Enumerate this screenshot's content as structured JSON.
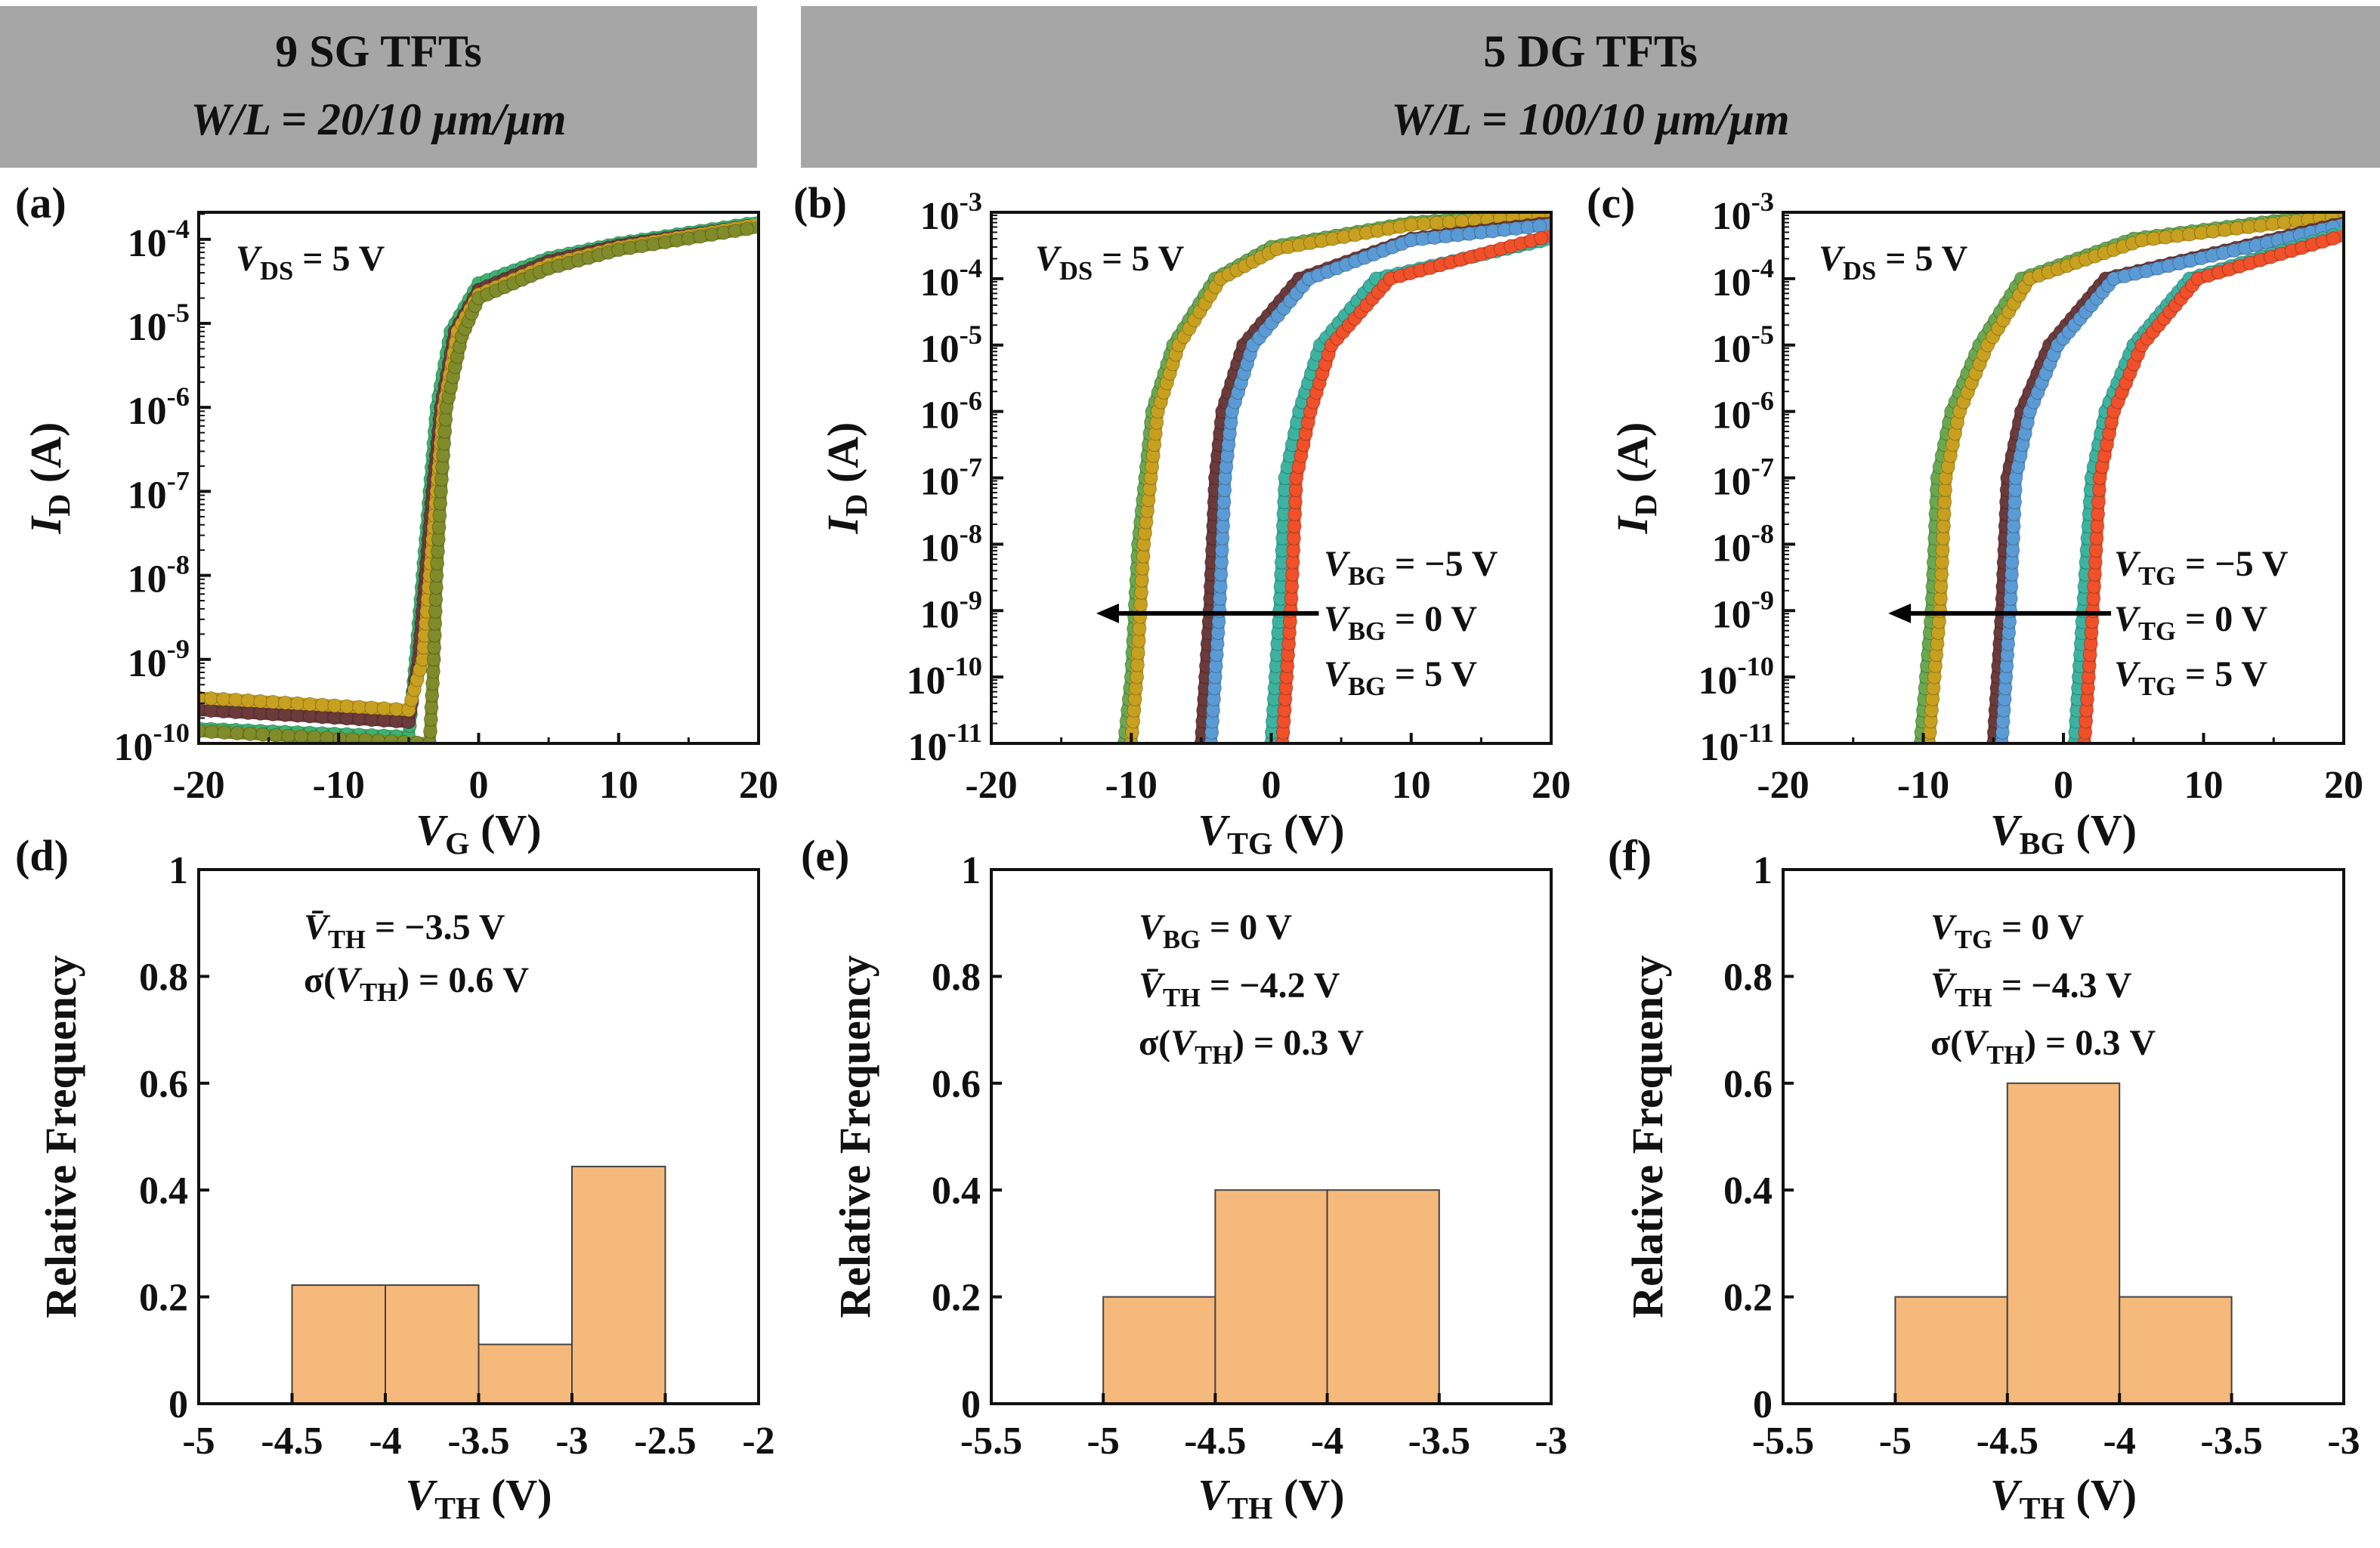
{
  "headers": [
    {
      "line1": "9 SG TFTs",
      "line2": "W/L = 20/10 μm/μm"
    },
    {
      "line1": "5 DG TFTs",
      "line2": "W/L = 100/10 μm/μm"
    }
  ],
  "colors": {
    "header_bg": "#a6a6a6",
    "bar_fill": "#f6b97c",
    "arrow": "#000000"
  },
  "chart_data": [
    {
      "id": "a",
      "panel_label": "(a)",
      "type": "line",
      "y_scale": "log",
      "xlabel": {
        "main": "V",
        "sub": "G",
        "rest": " (V)"
      },
      "ylabel": {
        "main": "I",
        "sub": "D",
        "rest": " (A)"
      },
      "xlim": [
        -20,
        20
      ],
      "x_ticks": [
        "-20",
        "-10",
        "0",
        "10",
        "20"
      ],
      "x_tick_values": [
        -20,
        -10,
        0,
        10,
        20
      ],
      "ylim": [
        1e-10,
        0.00021
      ],
      "y_tick_exponents": [
        "-10",
        "-9",
        "-8",
        "-7",
        "-6",
        "-5",
        "-4"
      ],
      "annotations": [
        {
          "main": "V",
          "sub": "DS",
          "rest": " = 5 V"
        }
      ],
      "series": [
        {
          "color": "#3cb371",
          "x": [
            -20,
            -5,
            -4.5,
            -4,
            -3.5,
            -3,
            -2,
            0,
            5,
            10,
            20
          ],
          "y": [
            1.5e-10,
            1.2e-10,
            1e-09,
            1e-08,
            1e-07,
            1e-06,
            8e-06,
            3e-05,
            6e-05,
            9e-05,
            0.00016
          ]
        },
        {
          "color": "#6b3a3a",
          "x": [
            -20,
            -5,
            -4.3,
            -3.8,
            -3.3,
            -2.7,
            -1.7,
            0,
            5,
            10,
            20
          ],
          "y": [
            2.5e-10,
            1.8e-10,
            1e-09,
            1e-08,
            1e-07,
            1e-06,
            8e-06,
            2.5e-05,
            5.5e-05,
            8.5e-05,
            0.00015
          ]
        },
        {
          "color": "#c8a020",
          "x": [
            -20,
            -5,
            -4,
            -3.5,
            -3,
            -2.5,
            -1.5,
            0,
            5,
            10,
            20
          ],
          "y": [
            3.5e-10,
            2.5e-10,
            1e-09,
            1e-08,
            1e-07,
            1e-06,
            8e-06,
            2.2e-05,
            5e-05,
            8e-05,
            0.00015
          ]
        },
        {
          "color": "#808b2a",
          "x": [
            -20,
            -3.5,
            -3.2,
            -3,
            -2.7,
            -2.3,
            -1.2,
            0,
            5,
            10,
            20
          ],
          "y": [
            1.4e-10,
            1e-10,
            1e-09,
            1e-08,
            1e-07,
            1e-06,
            7e-06,
            2e-05,
            4.5e-05,
            7.5e-05,
            0.00014
          ]
        }
      ]
    },
    {
      "id": "b",
      "panel_label": "(b)",
      "type": "line",
      "y_scale": "log",
      "xlabel": {
        "main": "V",
        "sub": "TG",
        "rest": " (V)"
      },
      "ylabel": {
        "main": "I",
        "sub": "D",
        "rest": " (A)"
      },
      "xlim": [
        -20,
        20
      ],
      "x_ticks": [
        "-20",
        "-10",
        "0",
        "10",
        "20"
      ],
      "x_tick_values": [
        -20,
        -10,
        0,
        10,
        20
      ],
      "ylim": [
        1e-11,
        0.001
      ],
      "y_tick_exponents": [
        "-11",
        "-10",
        "-9",
        "-8",
        "-7",
        "-6",
        "-5",
        "-4",
        "-3"
      ],
      "annotations": [
        {
          "main": "V",
          "sub": "DS",
          "rest": " = 5 V"
        }
      ],
      "legend_labels": [
        {
          "main": "V",
          "sub": "BG",
          "rest": " = −5 V"
        },
        {
          "main": "V",
          "sub": "BG",
          "rest": " = 0 V"
        },
        {
          "main": "V",
          "sub": "BG",
          "rest": " = 5 V"
        }
      ],
      "arrow": {
        "from": [
          3.4,
          9.1e-10
        ],
        "to": [
          -12.5,
          9.1e-10
        ]
      },
      "series": [
        {
          "color": "#6aa84f",
          "x": [
            -10.5,
            -10,
            -9.5,
            -9,
            -8.5,
            -7,
            -4,
            0,
            10,
            20
          ],
          "y": [
            1e-11,
            1e-10,
            1e-08,
            1e-07,
            1e-06,
            1e-05,
            0.0001,
            0.0003,
            0.0007,
            0.001
          ]
        },
        {
          "color": "#c8a020",
          "x": [
            -10,
            -9.6,
            -9.1,
            -8.6,
            -8.1,
            -6.6,
            -3.6,
            0.4,
            10,
            20
          ],
          "y": [
            1e-11,
            1e-10,
            1e-08,
            1e-07,
            1e-06,
            1e-05,
            0.0001,
            0.00028,
            0.00065,
            0.0009
          ]
        },
        {
          "color": "#6b3a3a",
          "x": [
            -5,
            -4.7,
            -4.4,
            -4,
            -3.5,
            -2,
            2,
            10,
            20
          ],
          "y": [
            1e-11,
            1e-10,
            1e-09,
            1e-07,
            1e-06,
            1e-05,
            0.0001,
            0.0004,
            0.0007
          ]
        },
        {
          "color": "#5b9bd5",
          "x": [
            -4.3,
            -4,
            -3.7,
            -3.3,
            -2.8,
            -1.3,
            2.7,
            10,
            20
          ],
          "y": [
            1e-11,
            1e-10,
            1e-09,
            1e-07,
            1e-06,
            1e-05,
            0.0001,
            0.00038,
            0.00065
          ]
        },
        {
          "color": "#3cb3a0",
          "x": [
            0,
            0.3,
            0.6,
            1,
            2,
            3.5,
            7.5,
            20
          ],
          "y": [
            1e-11,
            1e-10,
            1e-09,
            1e-07,
            1e-06,
            1e-05,
            0.0001,
            0.0004
          ]
        },
        {
          "color": "#f0502a",
          "x": [
            0.8,
            1.1,
            1.4,
            1.8,
            2.8,
            4.3,
            8.5,
            20
          ],
          "y": [
            1e-11,
            1e-10,
            1e-09,
            1e-07,
            1e-06,
            1e-05,
            0.0001,
            0.00045
          ]
        }
      ]
    },
    {
      "id": "c",
      "panel_label": "(c)",
      "type": "line",
      "y_scale": "log",
      "xlabel": {
        "main": "V",
        "sub": "BG",
        "rest": " (V)"
      },
      "ylabel": {
        "main": "I",
        "sub": "D",
        "rest": " (A)"
      },
      "xlim": [
        -20,
        20
      ],
      "x_ticks": [
        "-20",
        "-10",
        "0",
        "10",
        "20"
      ],
      "x_tick_values": [
        -20,
        -10,
        0,
        10,
        20
      ],
      "ylim": [
        1e-11,
        0.001
      ],
      "y_tick_exponents": [
        "-11",
        "-10",
        "-9",
        "-8",
        "-7",
        "-6",
        "-5",
        "-4",
        "-3"
      ],
      "annotations": [
        {
          "main": "V",
          "sub": "DS",
          "rest": " = 5 V"
        }
      ],
      "legend_labels": [
        {
          "main": "V",
          "sub": "TG",
          "rest": " = −5 V"
        },
        {
          "main": "V",
          "sub": "TG",
          "rest": " = 0 V"
        },
        {
          "main": "V",
          "sub": "TG",
          "rest": " = 5 V"
        }
      ],
      "arrow": {
        "from": [
          3.4,
          9.1e-10
        ],
        "to": [
          -12.5,
          9.1e-10
        ]
      },
      "series": [
        {
          "color": "#6aa84f",
          "x": [
            -10.2,
            -9.8,
            -9.4,
            -9,
            -8,
            -6,
            -3,
            5,
            20
          ],
          "y": [
            1e-11,
            1e-10,
            1e-09,
            1e-07,
            1e-06,
            1e-05,
            0.0001,
            0.0004,
            0.001
          ]
        },
        {
          "color": "#c8a020",
          "x": [
            -9.6,
            -9.2,
            -8.8,
            -8.4,
            -7.4,
            -5.4,
            -2.4,
            5.6,
            20
          ],
          "y": [
            1e-11,
            1e-10,
            1e-09,
            1e-07,
            1e-06,
            1e-05,
            0.0001,
            0.00038,
            0.0009
          ]
        },
        {
          "color": "#6b3a3a",
          "x": [
            -5,
            -4.7,
            -4.4,
            -4,
            -3,
            -1,
            3,
            20
          ],
          "y": [
            1e-11,
            1e-10,
            1e-09,
            1e-07,
            1e-06,
            1e-05,
            0.0001,
            0.0007
          ]
        },
        {
          "color": "#5b9bd5",
          "x": [
            -4.4,
            -4.1,
            -3.8,
            -3.4,
            -2.4,
            -0.4,
            3.6,
            20
          ],
          "y": [
            1e-11,
            1e-10,
            1e-09,
            1e-07,
            1e-06,
            1e-05,
            0.0001,
            0.00065
          ]
        },
        {
          "color": "#3cb3a0",
          "x": [
            0.8,
            1.1,
            1.4,
            2,
            3,
            5,
            9,
            20
          ],
          "y": [
            1e-11,
            1e-10,
            1e-09,
            1e-07,
            1e-06,
            1e-05,
            0.0001,
            0.0005
          ]
        },
        {
          "color": "#f0502a",
          "x": [
            1.5,
            1.8,
            2.1,
            2.6,
            3.6,
            5.6,
            9.6,
            20
          ],
          "y": [
            1e-11,
            1e-10,
            1e-09,
            1e-07,
            1e-06,
            1e-05,
            0.0001,
            0.00045
          ]
        }
      ]
    },
    {
      "id": "d",
      "panel_label": "(d)",
      "type": "bar",
      "xlabel": {
        "main": "V",
        "sub": "TH",
        "rest": " (V)"
      },
      "ylabel": {
        "main": "Relative Frequency",
        "sub": "",
        "rest": ""
      },
      "xlim": [
        -5,
        -2
      ],
      "x_ticks": [
        "-5",
        "-4.5",
        "-4",
        "-3.5",
        "-3",
        "-2.5",
        "-2"
      ],
      "x_tick_values": [
        -5,
        -4.5,
        -4,
        -3.5,
        -3,
        -2.5,
        -2
      ],
      "ylim": [
        0,
        1
      ],
      "y_ticks": [
        "0",
        "0.2",
        "0.4",
        "0.6",
        "0.8",
        "1"
      ],
      "y_tick_values": [
        0,
        0.2,
        0.4,
        0.6,
        0.8,
        1
      ],
      "bins": [
        [
          -4.5,
          -4
        ],
        [
          -4,
          -3.5
        ],
        [
          -3.5,
          -3
        ],
        [
          -3,
          -2.5
        ]
      ],
      "values": [
        0.222,
        0.222,
        0.111,
        0.444
      ],
      "annotations": [
        {
          "main": "V̄",
          "sub": "TH",
          "rest": " = −3.5 V"
        },
        {
          "pre": "σ(",
          "main": "V",
          "sub": "TH",
          "rest": ") = 0.6 V"
        }
      ]
    },
    {
      "id": "e",
      "panel_label": "(e)",
      "type": "bar",
      "xlabel": {
        "main": "V",
        "sub": "TH",
        "rest": " (V)"
      },
      "ylabel": {
        "main": "Relative Frequency",
        "sub": "",
        "rest": ""
      },
      "xlim": [
        -5.5,
        -3
      ],
      "x_ticks": [
        "-5.5",
        "-5",
        "-4.5",
        "-4",
        "-3.5",
        "-3"
      ],
      "x_tick_values": [
        -5.5,
        -5,
        -4.5,
        -4,
        -3.5,
        -3
      ],
      "ylim": [
        0,
        1
      ],
      "y_ticks": [
        "0",
        "0.2",
        "0.4",
        "0.6",
        "0.8",
        "1"
      ],
      "y_tick_values": [
        0,
        0.2,
        0.4,
        0.6,
        0.8,
        1
      ],
      "bins": [
        [
          -5,
          -4.5
        ],
        [
          -4.5,
          -4
        ],
        [
          -4,
          -3.5
        ]
      ],
      "values": [
        0.2,
        0.4,
        0.4
      ],
      "annotations": [
        {
          "main": "V",
          "sub": "BG",
          "rest": " = 0 V"
        },
        {
          "main": "V̄",
          "sub": "TH",
          "rest": " = −4.2 V"
        },
        {
          "pre": "σ(",
          "main": "V",
          "sub": "TH",
          "rest": ") = 0.3 V"
        }
      ]
    },
    {
      "id": "f",
      "panel_label": "(f)",
      "type": "bar",
      "xlabel": {
        "main": "V",
        "sub": "TH",
        "rest": " (V)"
      },
      "ylabel": {
        "main": "Relative Frequency",
        "sub": "",
        "rest": ""
      },
      "xlim": [
        -5.5,
        -3
      ],
      "x_ticks": [
        "-5.5",
        "-5",
        "-4.5",
        "-4",
        "-3.5",
        "-3"
      ],
      "x_tick_values": [
        -5.5,
        -5,
        -4.5,
        -4,
        -3.5,
        -3
      ],
      "ylim": [
        0,
        1
      ],
      "y_ticks": [
        "0",
        "0.2",
        "0.4",
        "0.6",
        "0.8",
        "1"
      ],
      "y_tick_values": [
        0,
        0.2,
        0.4,
        0.6,
        0.8,
        1
      ],
      "bins": [
        [
          -5,
          -4.5
        ],
        [
          -4.5,
          -4
        ],
        [
          -4,
          -3.5
        ]
      ],
      "values": [
        0.2,
        0.6,
        0.2
      ],
      "annotations": [
        {
          "main": "V",
          "sub": "TG",
          "rest": " = 0 V"
        },
        {
          "main": "V̄",
          "sub": "TH",
          "rest": " = −4.3 V"
        },
        {
          "pre": "σ(",
          "main": "V",
          "sub": "TH",
          "rest": ") = 0.3 V"
        }
      ]
    }
  ]
}
